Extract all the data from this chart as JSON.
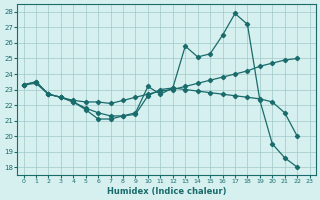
{
  "xlabel": "Humidex (Indice chaleur)",
  "ylabel": "",
  "xlim": [
    -0.5,
    23.5
  ],
  "ylim": [
    17.5,
    28.5
  ],
  "xticks": [
    0,
    1,
    2,
    3,
    4,
    5,
    6,
    7,
    8,
    9,
    10,
    11,
    12,
    13,
    14,
    15,
    16,
    17,
    18,
    19,
    20,
    21,
    22,
    23
  ],
  "yticks": [
    18,
    19,
    20,
    21,
    22,
    23,
    24,
    25,
    26,
    27,
    28
  ],
  "bg_color": "#d6f0ef",
  "grid_color": "#a0c8c8",
  "line_color": "#1a6b6b",
  "line_color2": "#1a7070",
  "series": [
    [
      23.3,
      23.5,
      22.7,
      22.5,
      22.2,
      21.7,
      21.1,
      21.1,
      21.3,
      21.5,
      23.2,
      22.7,
      23.1,
      25.8,
      25.1,
      25.3,
      26.5,
      27.9,
      27.2,
      22.3,
      19.5,
      18.6,
      18.0
    ],
    [
      23.3,
      23.5,
      22.7,
      22.5,
      22.3,
      22.2,
      22.2,
      22.1,
      22.3,
      22.5,
      22.7,
      22.9,
      23.0,
      23.2,
      23.4,
      23.6,
      23.8,
      24.0,
      24.2,
      24.5,
      24.7,
      24.9,
      25.0
    ],
    [
      23.3,
      23.4,
      22.7,
      22.5,
      22.2,
      21.8,
      21.5,
      21.3,
      21.3,
      21.4,
      22.6,
      23.0,
      23.1,
      23.0,
      22.9,
      22.8,
      22.7,
      22.6,
      22.5,
      22.4,
      22.2,
      21.5,
      20.0
    ]
  ],
  "x_start": 0
}
